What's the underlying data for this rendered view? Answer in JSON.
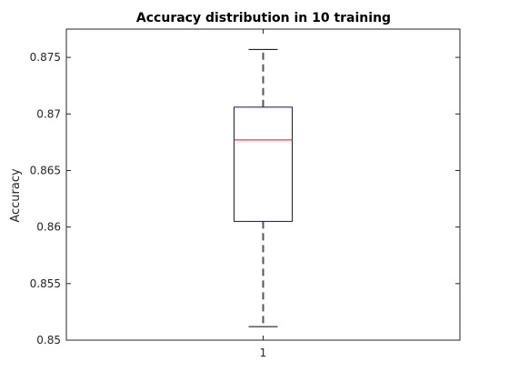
{
  "chart_data": {
    "type": "boxplot",
    "title": "Accuracy distribution in 10 training",
    "xlabel": "",
    "ylabel": "Accuracy",
    "categories": [
      "1"
    ],
    "ylim": [
      0.85,
      0.8775
    ],
    "yticks": [
      0.85,
      0.855,
      0.86,
      0.865,
      0.87,
      0.875
    ],
    "ytick_labels": [
      "0.85",
      "0.855",
      "0.86",
      "0.865",
      "0.87",
      "0.875"
    ],
    "grid": false,
    "boxes": [
      {
        "category": "1",
        "whisker_low": 0.8512,
        "q1": 0.8605,
        "median": 0.8677,
        "q3": 0.8706,
        "whisker_high": 0.8757
      }
    ],
    "colors": {
      "box": "#0000ff",
      "median": "#ff0000",
      "whisker": "#555555",
      "axis": "#262626",
      "text": "#000000"
    }
  }
}
